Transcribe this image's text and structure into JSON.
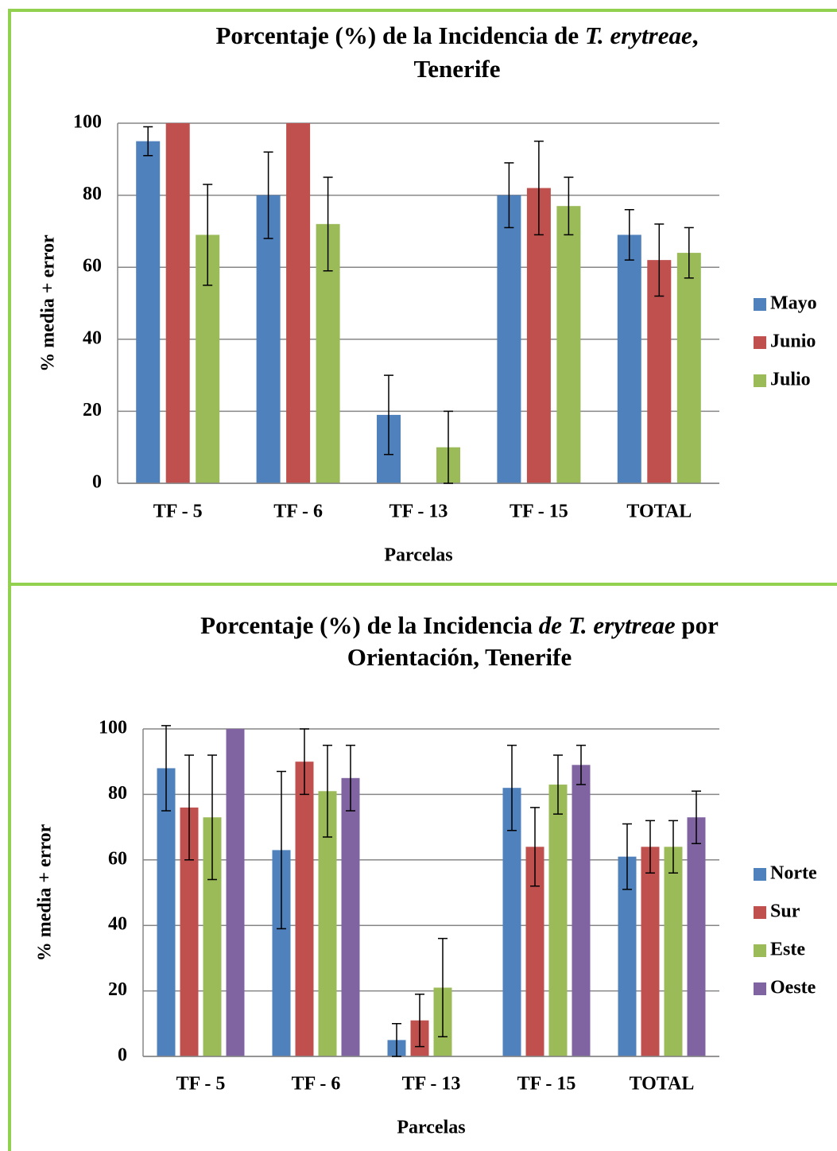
{
  "chart_data": [
    {
      "type": "bar",
      "title": [
        [
          {
            "text": "Porcentaje (%) de la Incidencia de ",
            "italic": false
          },
          {
            "text": "T. erytreae",
            "italic": true
          },
          {
            "text": ",",
            "italic": false
          }
        ],
        [
          {
            "text": "Tenerife",
            "italic": false
          }
        ]
      ],
      "x_label": "Parcelas",
      "y_label": "% media + error",
      "categories": [
        "TF - 5",
        "TF - 6",
        "TF - 13",
        "TF - 15",
        "TOTAL"
      ],
      "series": [
        {
          "name": "Mayo",
          "color": "#4f81bd",
          "values": [
            95,
            80,
            19,
            80,
            69
          ],
          "errors": [
            4,
            12,
            11,
            9,
            7
          ]
        },
        {
          "name": "Junio",
          "color": "#c0504d",
          "values": [
            100,
            100,
            0,
            82,
            62
          ],
          "errors": [
            null,
            null,
            null,
            13,
            10
          ]
        },
        {
          "name": "Julio",
          "color": "#9bbb59",
          "values": [
            69,
            72,
            10,
            77,
            64
          ],
          "errors": [
            14,
            13,
            10,
            8,
            7
          ]
        }
      ],
      "ylim": [
        0,
        100
      ],
      "yticks": [
        0,
        20,
        40,
        60,
        80,
        100
      ],
      "grid": true,
      "legend": "right"
    },
    {
      "type": "bar",
      "title": [
        [
          {
            "text": "Porcentaje (%) de la Incidencia ",
            "italic": false
          },
          {
            "text": "de T. erytreae",
            "italic": true
          },
          {
            "text": " por",
            "italic": false
          }
        ],
        [
          {
            "text": "Orientación,  Tenerife",
            "italic": false
          }
        ]
      ],
      "x_label": "Parcelas",
      "y_label": "% media + error",
      "categories": [
        "TF - 5",
        "TF - 6",
        "TF - 13",
        "TF - 15",
        "TOTAL"
      ],
      "series": [
        {
          "name": "Norte",
          "color": "#4f81bd",
          "values": [
            88,
            63,
            5,
            82,
            61
          ],
          "errors": [
            13,
            24,
            5,
            13,
            10
          ]
        },
        {
          "name": "Sur",
          "color": "#c0504d",
          "values": [
            76,
            90,
            11,
            64,
            64
          ],
          "errors": [
            16,
            10,
            8,
            12,
            8
          ]
        },
        {
          "name": "Este",
          "color": "#9bbb59",
          "values": [
            73,
            81,
            21,
            83,
            64
          ],
          "errors": [
            19,
            14,
            15,
            9,
            8
          ]
        },
        {
          "name": "Oeste",
          "color": "#8064a2",
          "values": [
            100,
            85,
            0,
            89,
            73
          ],
          "errors": [
            null,
            10,
            null,
            6,
            8
          ]
        }
      ],
      "ylim": [
        0,
        100
      ],
      "yticks": [
        0,
        20,
        40,
        60,
        80,
        100
      ],
      "grid": true,
      "legend": "right"
    }
  ]
}
